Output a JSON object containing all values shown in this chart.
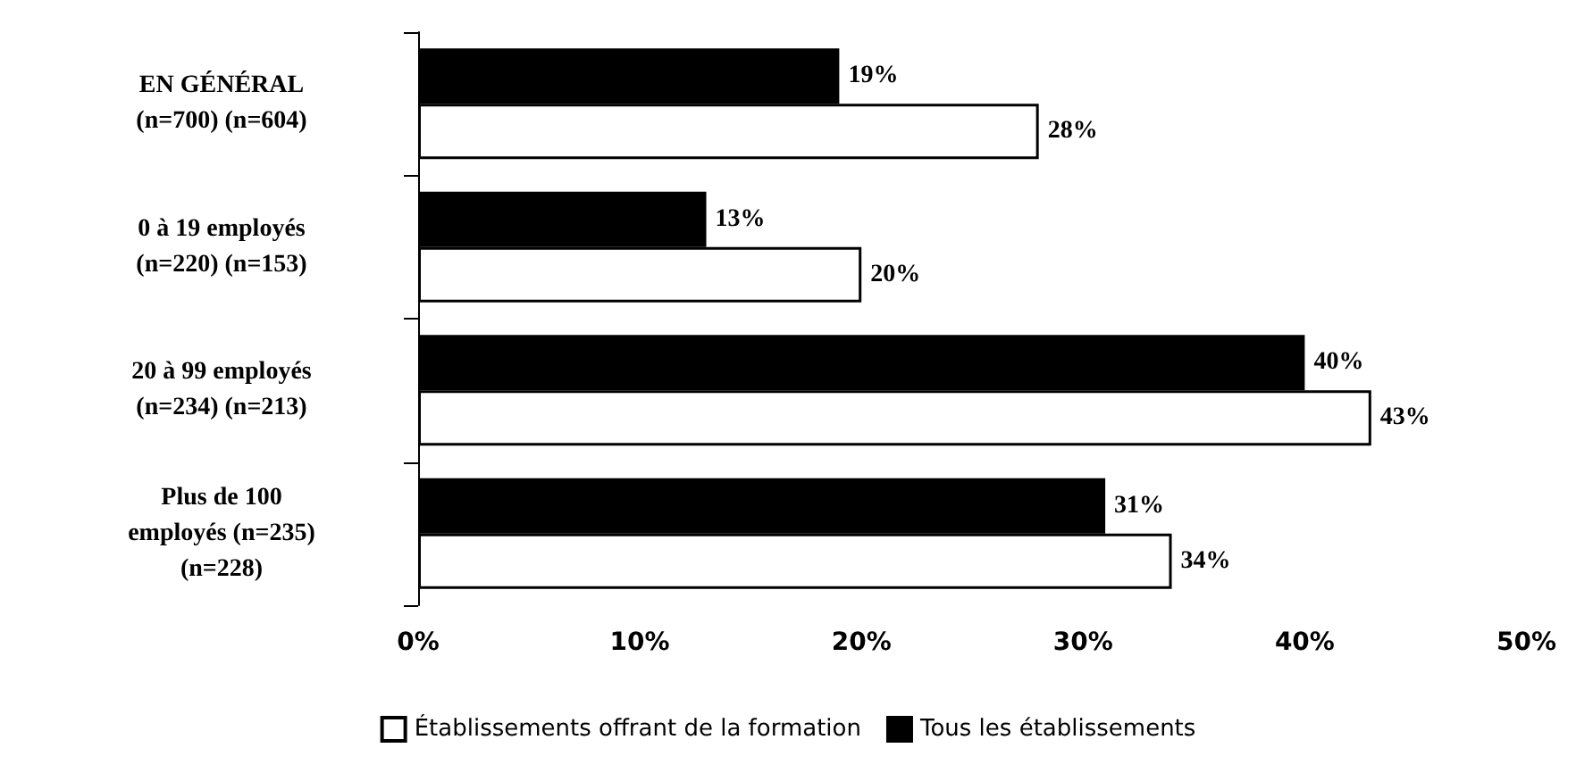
{
  "chart_data": {
    "type": "bar",
    "orientation": "horizontal",
    "categories": [
      "EN GÉNÉRAL\n(n=700) (n=604)",
      "0 à 19 employés\n(n=220) (n=153)",
      "20 à 99 employés\n(n=234) (n=213)",
      "Plus de 100\nemployés (n=235)\n(n=228)"
    ],
    "series": [
      {
        "name": "Tous les établissements",
        "color": "#000000",
        "values": [
          19,
          13,
          40,
          31
        ],
        "value_labels": [
          "19%",
          "13%",
          "40%",
          "31%"
        ]
      },
      {
        "name": "Établissements offrant de la formation",
        "color": "#ffffff",
        "values": [
          28,
          20,
          43,
          34
        ],
        "value_labels": [
          "28%",
          "20%",
          "43%",
          "34%"
        ]
      }
    ],
    "xlim": [
      0,
      50
    ],
    "xticks": [
      {
        "value": 0,
        "label": "0%"
      },
      {
        "value": 10,
        "label": "10%"
      },
      {
        "value": 20,
        "label": "20%"
      },
      {
        "value": 30,
        "label": "30%"
      },
      {
        "value": 40,
        "label": "40%"
      },
      {
        "value": 50,
        "label": "50%"
      }
    ],
    "grid": false,
    "legend": "bottom"
  }
}
